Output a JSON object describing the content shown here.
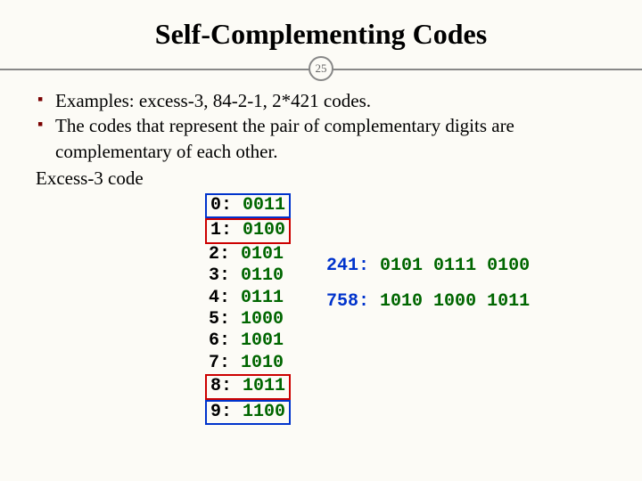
{
  "title": "Self-Complementing Codes",
  "page_number": "25",
  "bullets": [
    "Examples: excess-3, 84-2-1, 2*421 codes.",
    "The codes that represent the pair of complementary digits are complementary of each other."
  ],
  "subhead": "Excess-3 code",
  "code_rows": [
    {
      "d": "0",
      "b": "0011",
      "box": "blue"
    },
    {
      "d": "1",
      "b": "0100",
      "box": "red"
    },
    {
      "d": "2",
      "b": "0101",
      "box": null
    },
    {
      "d": "3",
      "b": "0110",
      "box": null
    },
    {
      "d": "4",
      "b": "0111",
      "box": null
    },
    {
      "d": "5",
      "b": "1000",
      "box": null
    },
    {
      "d": "6",
      "b": "1001",
      "box": null
    },
    {
      "d": "7",
      "b": "1010",
      "box": null
    },
    {
      "d": "8",
      "b": "1011",
      "box": "red"
    },
    {
      "d": "9",
      "b": "1100",
      "box": "blue"
    }
  ],
  "examples": [
    {
      "num": "241",
      "bits": "0101 0111 0100"
    },
    {
      "num": "758",
      "bits": "1010 1000 1011"
    }
  ],
  "colors": {
    "background": "#fcfbf6",
    "bullet_marker": "#7a0000",
    "digit_color": "#000000",
    "bits_color": "#006600",
    "num_color": "#0033cc",
    "box_blue": "#0033cc",
    "box_red": "#cc0000",
    "divider": "#888888"
  }
}
